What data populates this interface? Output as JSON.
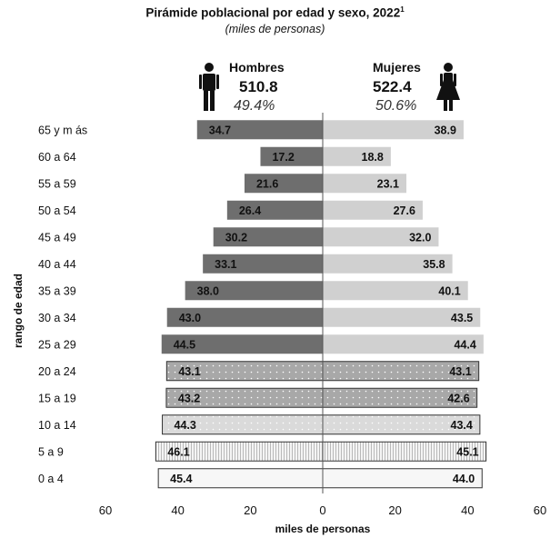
{
  "header": {
    "title": "Pirámide poblacional por edad y sexo, 2022",
    "title_sup": "1",
    "subtitle": "(miles de personas)"
  },
  "groups": {
    "men": {
      "label": "Hombres",
      "total": "510.8",
      "pct": "49.4%",
      "icon": "man-icon"
    },
    "women": {
      "label": "Mujeres",
      "total": "522.4",
      "pct": "50.6%",
      "icon": "woman-icon"
    }
  },
  "chart_data": {
    "type": "bar",
    "orientation": "horizontal-pyramid",
    "xlabel": "miles de personas",
    "ylabel": "rango de edad",
    "xlim": [
      -60,
      60
    ],
    "x_ticks": [
      "60",
      "40",
      "20",
      "0",
      "20",
      "40",
      "60"
    ],
    "categories": [
      "65 y más",
      "60 a 64",
      "55 a 59",
      "50 a 54",
      "45 a 49",
      "40 a 44",
      "35 a 39",
      "30 a 34",
      "25 a 29",
      "20 a 24",
      "15 a 19",
      "10 a 14",
      "5 a 9",
      "0 a 4"
    ],
    "category_labels": [
      "65 y m ás",
      "60 a 64",
      "55 a 59",
      "50 a 54",
      "45 a 49",
      "40 a 44",
      "35 a 39",
      "30 a 34",
      "25 a 29",
      "20 a 24",
      "15 a 19",
      "10 a 14",
      "5 a 9",
      "0 a 4"
    ],
    "series": [
      {
        "name": "Hombres",
        "values": [
          34.7,
          17.2,
          21.6,
          26.4,
          30.2,
          33.1,
          38.0,
          43.0,
          44.5,
          43.1,
          43.2,
          44.3,
          46.1,
          45.4
        ]
      },
      {
        "name": "Mujeres",
        "values": [
          38.9,
          18.8,
          23.1,
          27.6,
          32.0,
          35.8,
          40.1,
          43.5,
          44.4,
          43.1,
          42.6,
          43.4,
          45.1,
          44.0
        ]
      }
    ],
    "value_labels": {
      "men": [
        "34.7",
        "17.2",
        "21.6",
        "26.4",
        "30.2",
        "33.1",
        "38.0",
        "43.0",
        "44.5",
        "43.1",
        "43.2",
        "44.3",
        "46.1",
        "45.4"
      ],
      "women": [
        "38.9",
        "18.8",
        "23.1",
        "27.6",
        "32.0",
        "35.8",
        "40.1",
        "43.5",
        "44.4",
        "43.1",
        "42.6",
        "43.4",
        "45.1",
        "44.0"
      ]
    },
    "colors": {
      "men_solid": "#6e6e6e",
      "women_solid": "#d0d0d0",
      "dotted_fill": "#a8a8a8",
      "light_dotted_fill": "#d8d8d8",
      "striped_fill": "#f2f2f2",
      "outline_fill": "#f7f7f7"
    },
    "grid": false,
    "legend": "top"
  }
}
